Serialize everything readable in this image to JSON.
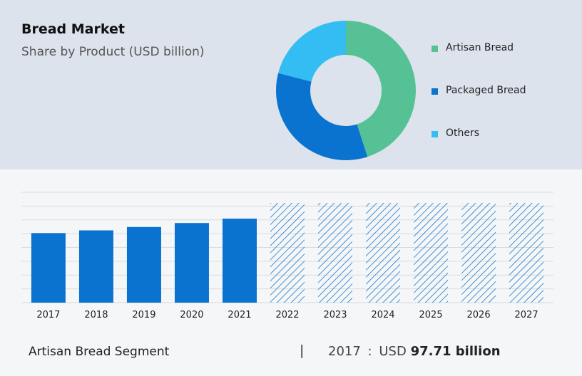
{
  "header": {
    "title": "Bread Market",
    "subtitle": "Share by Product (USD billion)"
  },
  "colors": {
    "artisan": "#56c195",
    "packaged": "#0a72cf",
    "others": "#33bdf2",
    "bar": "#0a72cf",
    "hatch": "#1a78c8",
    "grid": "#d9dbdf"
  },
  "chart_data": [
    {
      "type": "pie",
      "donut": true,
      "categories": [
        "Artisan Bread",
        "Packaged Bread",
        "Others"
      ],
      "values": [
        45,
        34,
        21
      ],
      "legend_position": "right"
    },
    {
      "type": "bar",
      "categories": [
        "2017",
        "2018",
        "2019",
        "2020",
        "2021",
        "2022",
        "2023",
        "2024",
        "2025",
        "2026",
        "2027"
      ],
      "values": [
        97.71,
        101.5,
        106.2,
        111.8,
        118.0,
        140,
        140,
        140,
        140,
        140,
        140
      ],
      "forecast_from": "2022",
      "ylim": [
        0,
        155
      ],
      "grid": true
    }
  ],
  "footer": {
    "segment_label": "Artisan Bread Segment",
    "divider": "|",
    "year": "2017",
    "separator": ":",
    "currency": "USD",
    "value": "97.71 billion"
  }
}
